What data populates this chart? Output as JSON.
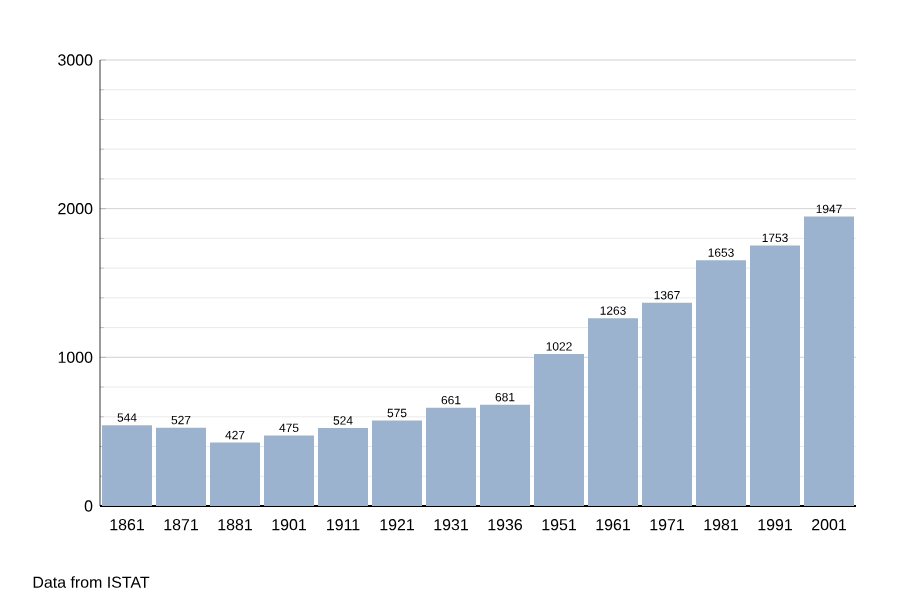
{
  "chart_data": {
    "type": "bar",
    "categories": [
      "1861",
      "1871",
      "1881",
      "1901",
      "1911",
      "1921",
      "1931",
      "1936",
      "1951",
      "1961",
      "1971",
      "1981",
      "1991",
      "2001"
    ],
    "values": [
      544,
      527,
      427,
      475,
      524,
      575,
      661,
      681,
      1022,
      1263,
      1367,
      1653,
      1753,
      1947
    ],
    "color": "#9bb3cf",
    "ylim": [
      0,
      3000
    ],
    "yticks": [
      0,
      1000,
      2000,
      3000
    ],
    "grid": "y",
    "data_labels": true,
    "annotations": [
      "Data from ISTAT"
    ]
  }
}
